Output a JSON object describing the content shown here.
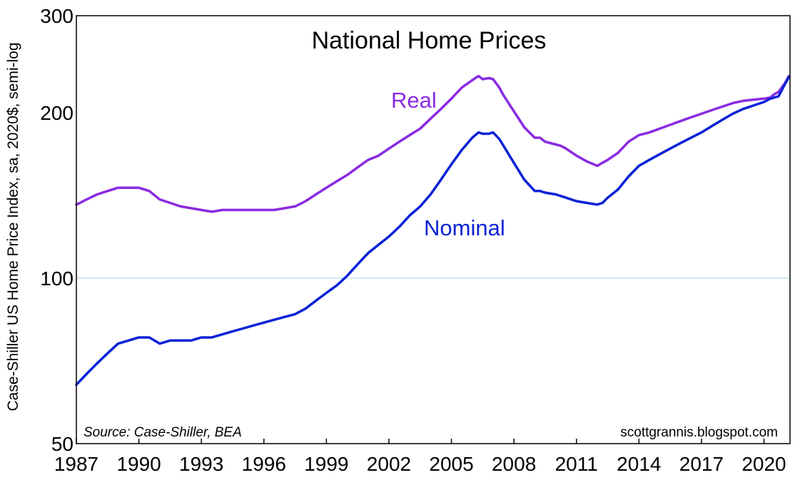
{
  "chart_data": {
    "type": "line",
    "title": "National Home Prices",
    "ylabel": "Case-Shiller US Home Price Index, sa, 2020$, semi-log",
    "xlabel": "",
    "yscale": "log",
    "ylim": [
      50,
      300
    ],
    "xlim": [
      1987.0,
      2021.25
    ],
    "yticks": [
      50,
      100,
      200,
      300
    ],
    "xticks": [
      "1987",
      "1990",
      "1993",
      "1996",
      "1999",
      "2002",
      "2005",
      "2008",
      "2011",
      "2014",
      "2017",
      "2020"
    ],
    "grid": "horizontal line at 100 only",
    "legend": "inline labels next to each line",
    "source": "Source: Case-Shiller, BEA",
    "credit": "scottgrannis.blogspot.com",
    "series": [
      {
        "name": "Real",
        "color": "#8a2be2",
        "x": [
          1987.0,
          1987.5,
          1988.0,
          1988.5,
          1989.0,
          1989.5,
          1990.0,
          1990.5,
          1991.0,
          1991.5,
          1992.0,
          1992.5,
          1993.0,
          1993.5,
          1994.0,
          1994.5,
          1995.0,
          1995.5,
          1996.0,
          1996.5,
          1997.0,
          1997.5,
          1998.0,
          1998.5,
          1999.0,
          1999.5,
          2000.0,
          2000.5,
          2001.0,
          2001.5,
          2002.0,
          2002.5,
          2003.0,
          2003.5,
          2004.0,
          2004.5,
          2005.0,
          2005.5,
          2006.0,
          2006.3,
          2006.5,
          2006.8,
          2007.0,
          2007.3,
          2007.5,
          2008.0,
          2008.5,
          2009.0,
          2009.25,
          2009.5,
          2010.0,
          2010.25,
          2010.5,
          2011.0,
          2011.5,
          2012.0,
          2012.25,
          2012.5,
          2013.0,
          2013.5,
          2014.0,
          2014.5,
          2015.0,
          2015.5,
          2016.0,
          2016.5,
          2017.0,
          2017.5,
          2018.0,
          2018.5,
          2019.0,
          2019.5,
          2020.0,
          2020.3,
          2020.5,
          2020.7,
          2021.0,
          2021.2
        ],
        "values": [
          136,
          139,
          142,
          144,
          146,
          146,
          146,
          144,
          139,
          137,
          135,
          134,
          133,
          132,
          133,
          133,
          133,
          133,
          133,
          133,
          134,
          135,
          138,
          142,
          146,
          150,
          154,
          159,
          164,
          167,
          172,
          177,
          182,
          187,
          195,
          203,
          212,
          222,
          229,
          233,
          230,
          231,
          230,
          222,
          215,
          201,
          188,
          180,
          180,
          177,
          175,
          174,
          172,
          167,
          163,
          160,
          162,
          164,
          169,
          177,
          182,
          184,
          187,
          190,
          193,
          196,
          199,
          202,
          205,
          208,
          210,
          211,
          212,
          213,
          216,
          218,
          226,
          233
        ]
      },
      {
        "name": "Nominal",
        "color": "#0a22d6",
        "x": [
          1987.0,
          1987.5,
          1988.0,
          1988.5,
          1989.0,
          1989.5,
          1990.0,
          1990.5,
          1991.0,
          1991.5,
          1992.0,
          1992.5,
          1993.0,
          1993.5,
          1994.0,
          1994.5,
          1995.0,
          1995.5,
          1996.0,
          1996.5,
          1997.0,
          1997.5,
          1998.0,
          1998.5,
          1999.0,
          1999.5,
          2000.0,
          2000.5,
          2001.0,
          2001.5,
          2002.0,
          2002.5,
          2003.0,
          2003.5,
          2004.0,
          2004.5,
          2005.0,
          2005.5,
          2006.0,
          2006.3,
          2006.5,
          2006.8,
          2007.0,
          2007.3,
          2007.5,
          2008.0,
          2008.5,
          2009.0,
          2009.25,
          2009.5,
          2010.0,
          2010.25,
          2010.5,
          2011.0,
          2011.5,
          2012.0,
          2012.25,
          2012.5,
          2013.0,
          2013.5,
          2014.0,
          2014.5,
          2015.0,
          2015.5,
          2016.0,
          2016.5,
          2017.0,
          2017.5,
          2018.0,
          2018.5,
          2019.0,
          2019.5,
          2020.0,
          2020.3,
          2020.5,
          2020.7,
          2021.0,
          2021.2
        ],
        "values": [
          64,
          67,
          70,
          73,
          76,
          77,
          78,
          78,
          76,
          77,
          77,
          77,
          78,
          78,
          79,
          80,
          81,
          82,
          83,
          84,
          85,
          86,
          88,
          91,
          94,
          97,
          101,
          106,
          111,
          115,
          119,
          124,
          130,
          135,
          142,
          151,
          161,
          171,
          180,
          184,
          183,
          183,
          184,
          179,
          174,
          162,
          151,
          144,
          144,
          143,
          142,
          141,
          140,
          138,
          137,
          136,
          137,
          140,
          145,
          153,
          160,
          164,
          168,
          172,
          176,
          180,
          184,
          189,
          194,
          199,
          203,
          206,
          209,
          212,
          213,
          214,
          225,
          232
        ]
      }
    ],
    "annotations": {
      "real_label": "Real",
      "nominal_label": "Nominal"
    }
  }
}
